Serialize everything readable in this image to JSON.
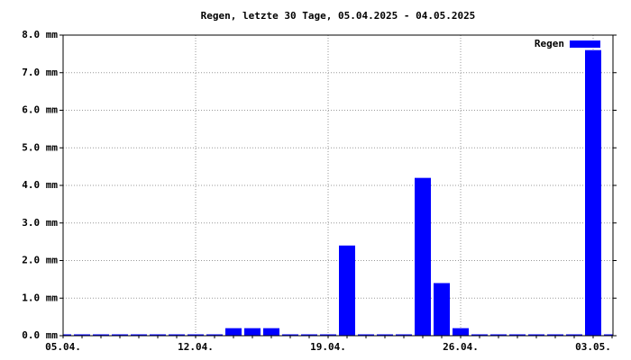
{
  "chart_data": {
    "type": "bar",
    "title": "Regen, letzte 30 Tage, 05.04.2025 - 04.05.2025",
    "categories": [
      "05.04.",
      null,
      null,
      null,
      null,
      null,
      null,
      "12.04.",
      null,
      null,
      null,
      null,
      null,
      null,
      "19.04.",
      null,
      null,
      null,
      null,
      null,
      null,
      "26.04.",
      null,
      null,
      null,
      null,
      null,
      null,
      "03.05.",
      null
    ],
    "series": [
      {
        "name": "Regen",
        "color": "#0000ff",
        "values": [
          0,
          0,
          0,
          0,
          0,
          0,
          0,
          0,
          0,
          0.2,
          0.2,
          0.2,
          0,
          0,
          0,
          2.4,
          0,
          0,
          0,
          4.2,
          1.4,
          0.2,
          0,
          0,
          0,
          0,
          0,
          0,
          7.6,
          0
        ]
      }
    ],
    "ylim": [
      0,
      8
    ],
    "yticks": [
      {
        "value": 0,
        "label": "0.0 mm"
      },
      {
        "value": 1,
        "label": "1.0 mm"
      },
      {
        "value": 2,
        "label": "2.0 mm"
      },
      {
        "value": 3,
        "label": "3.0 mm"
      },
      {
        "value": 4,
        "label": "4.0 mm"
      },
      {
        "value": 5,
        "label": "5.0 mm"
      },
      {
        "value": 6,
        "label": "6.0 mm"
      },
      {
        "value": 7,
        "label": "7.0 mm"
      },
      {
        "value": 8,
        "label": "8.0 mm"
      }
    ],
    "grid": true,
    "legend": "top-right"
  }
}
